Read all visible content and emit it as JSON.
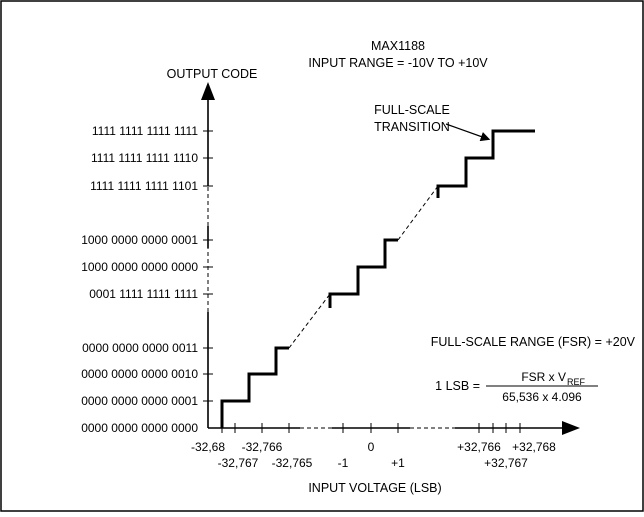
{
  "header": {
    "device": "MAX1188",
    "input_range": "INPUT RANGE = -10V TO +10V"
  },
  "y_axis": {
    "title": "OUTPUT CODE",
    "codes": [
      "1111 1111 1111 1111",
      "1111 1111 1111 1110",
      "1111 1111 1111 1101",
      "1000 0000 0000 0001",
      "1000 0000 0000 0000",
      "0001 1111 1111 1111",
      "0000 0000 0000 0011",
      "0000 0000 0000 0010",
      "0000 0000 0000 0001",
      "0000 0000 0000 0000"
    ]
  },
  "x_axis": {
    "title": "INPUT VOLTAGE (LSB)",
    "upper_labels": [
      "-32,68",
      "-32,766",
      "0",
      "+32,766",
      "+32,768"
    ],
    "lower_labels": [
      "-32,767",
      "-32,765",
      "-1",
      "+1",
      "+32,767"
    ]
  },
  "annotations": {
    "fs_transition_line1": "FULL-SCALE",
    "fs_transition_line2": "TRANSITION",
    "fsr": "FULL-SCALE RANGE (FSR) = +20V",
    "lsb_prefix": "1 LSB =",
    "lsb_numerator": "FSR x V",
    "lsb_numerator_sub": "REF",
    "lsb_denominator": "65,536 x 4.096"
  }
}
